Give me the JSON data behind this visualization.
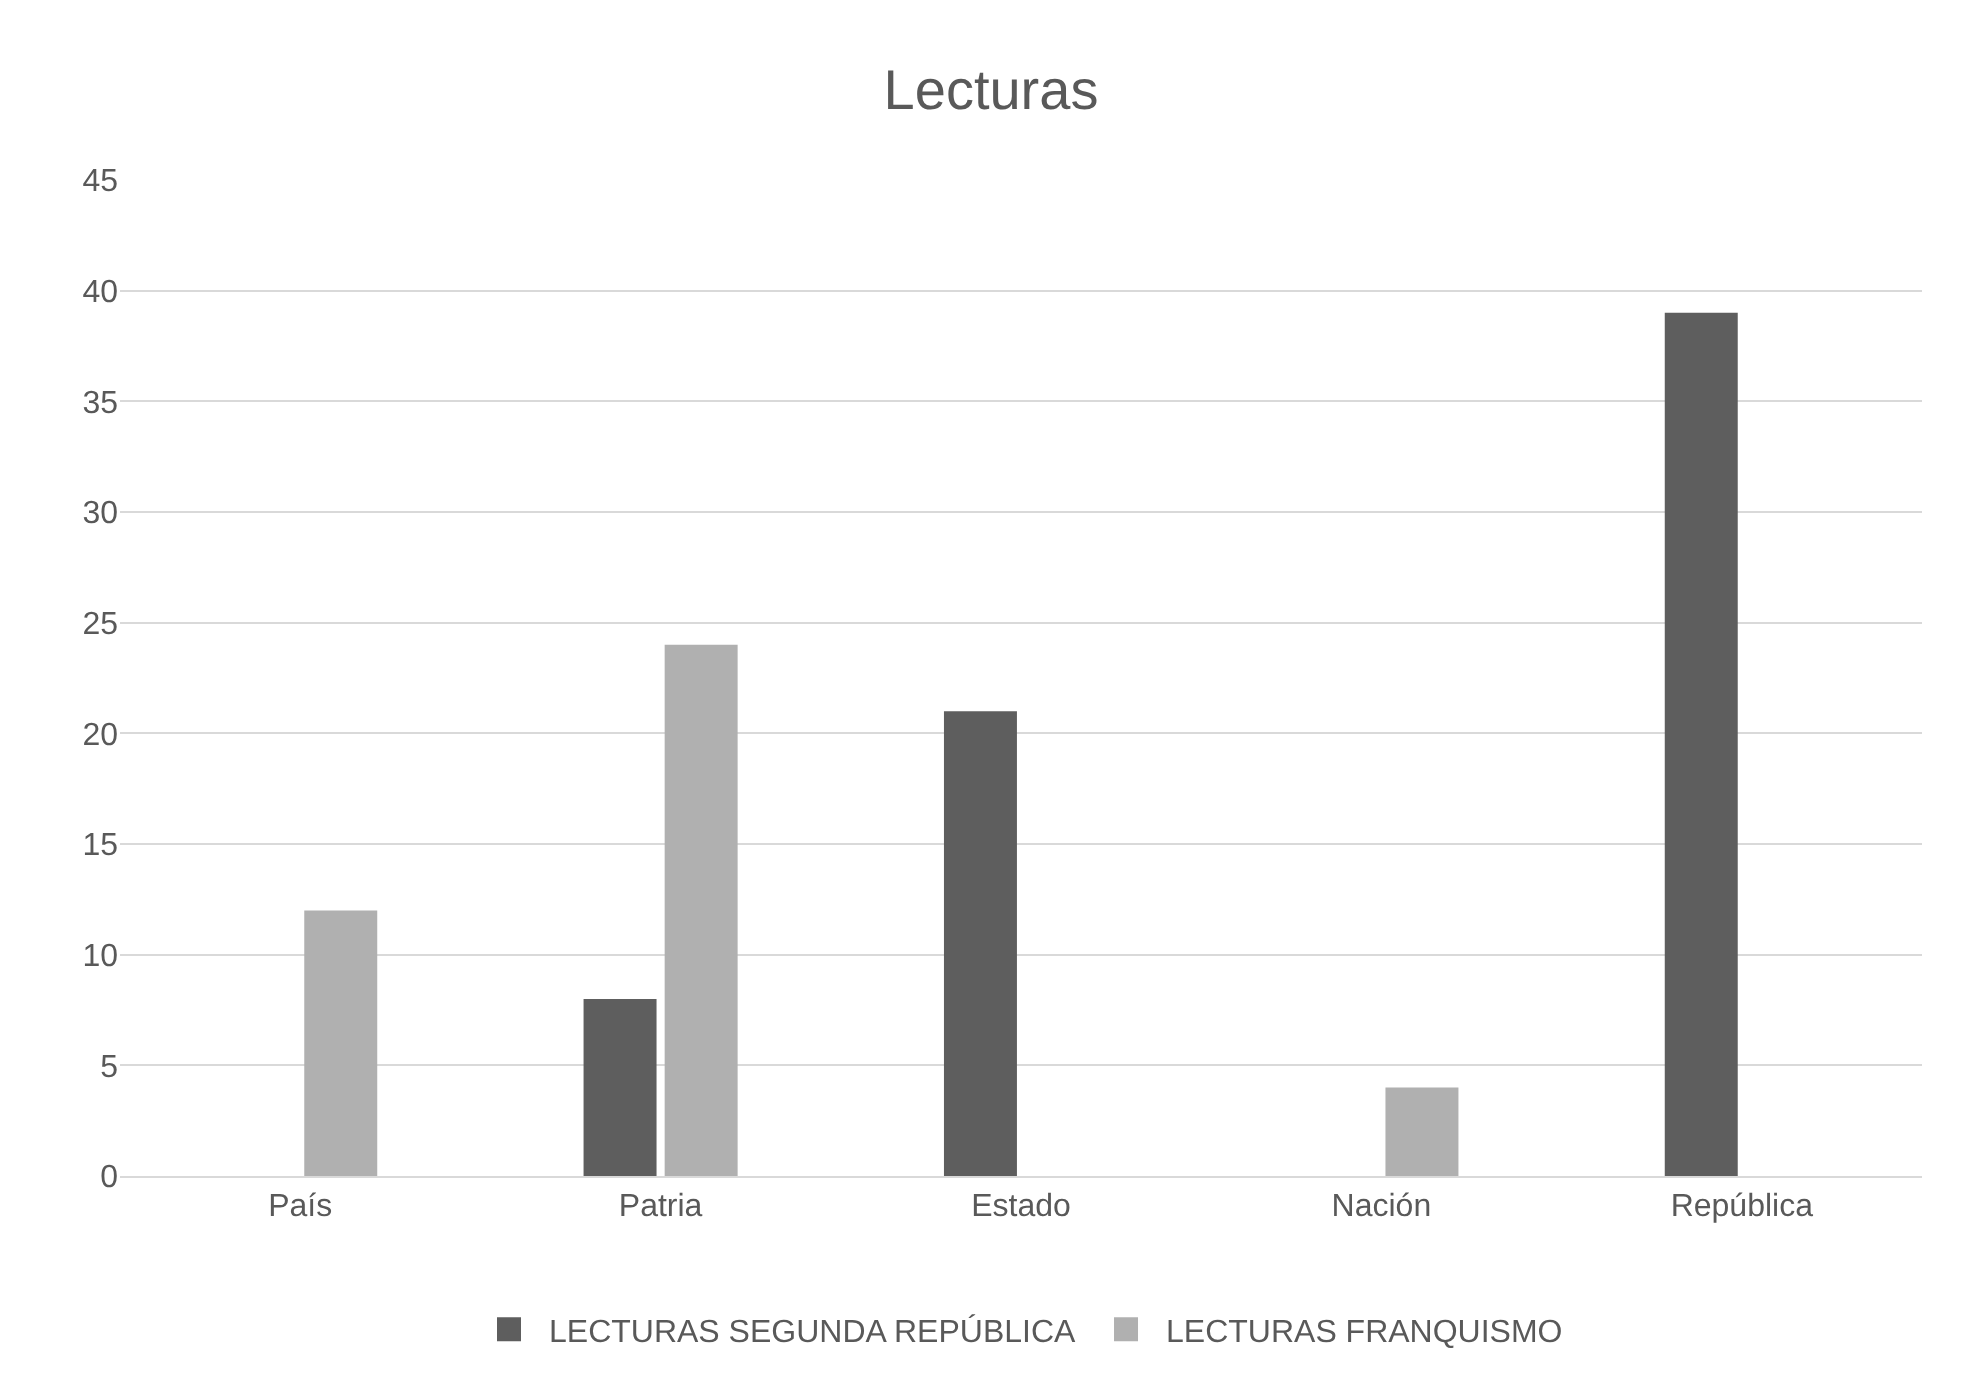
{
  "chart_data": {
    "type": "bar",
    "title": "Lecturas",
    "categories": [
      "País",
      "Patria",
      "Estado",
      "Nación",
      "República"
    ],
    "series": [
      {
        "name": "LECTURAS SEGUNDA REPÚBLICA",
        "color": "#5e5e5e",
        "values": [
          null,
          8,
          21,
          null,
          39
        ]
      },
      {
        "name": "LECTURAS FRANQUISMO",
        "color": "#b0b0b0",
        "values": [
          12,
          24,
          null,
          4,
          null
        ]
      }
    ],
    "ylim": [
      0,
      45
    ],
    "yticks": [
      0,
      5,
      10,
      15,
      20,
      25,
      30,
      35,
      40,
      45
    ],
    "grid": "y",
    "legend": "bottom"
  }
}
